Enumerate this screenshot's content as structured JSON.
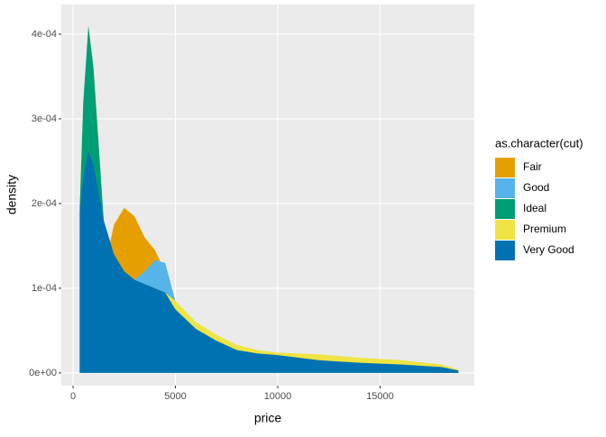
{
  "chart_data": {
    "type": "area",
    "x_label": "price",
    "y_label": "density",
    "legend_title": "as.character(cut)",
    "legend": "right",
    "grid": true,
    "x": [
      326,
      500,
      750,
      1000,
      1500,
      2000,
      2500,
      3000,
      3500,
      4000,
      4500,
      5000,
      6000,
      7000,
      8000,
      9000,
      10000,
      12000,
      14000,
      16000,
      18000,
      18823
    ],
    "series": [
      {
        "name": "Fair",
        "color": "#E69F00",
        "values": [
          3e-05,
          4.5e-05,
          6e-05,
          8e-05,
          0.00012,
          0.000175,
          0.000195,
          0.000185,
          0.00016,
          0.000145,
          0.00012,
          8e-05,
          5.5e-05,
          4e-05,
          3e-05,
          2.5e-05,
          2e-05,
          1.5e-05,
          1.2e-05,
          1e-05,
          7e-06,
          3e-06
        ]
      },
      {
        "name": "Good",
        "color": "#56B4E9",
        "values": [
          0.00016,
          0.0002,
          0.00023,
          0.00022,
          0.000165,
          0.00013,
          0.000115,
          0.00011,
          0.00012,
          0.000133,
          0.00013,
          8.5e-05,
          5e-05,
          3.8e-05,
          2.8e-05,
          2.3e-05,
          2e-05,
          1.5e-05,
          1.2e-05,
          1e-05,
          7e-06,
          3e-06
        ]
      },
      {
        "name": "Ideal",
        "color": "#009E73",
        "values": [
          0.000195,
          0.00032,
          0.00041,
          0.00036,
          0.00018,
          0.00011,
          8.5e-05,
          7.5e-05,
          7e-05,
          7e-05,
          6e-05,
          4.5e-05,
          3e-05,
          2.7e-05,
          2.2e-05,
          1.8e-05,
          1.5e-05,
          1.2e-05,
          1e-05,
          8e-06,
          6e-06,
          3e-06
        ]
      },
      {
        "name": "Premium",
        "color": "#F0E442",
        "values": [
          0.00015,
          0.00019,
          0.00022,
          0.00021,
          0.00016,
          0.00013,
          0.00011,
          0.000105,
          0.000105,
          0.0001,
          9.5e-05,
          8.5e-05,
          6e-05,
          4.5e-05,
          3.3e-05,
          2.7e-05,
          2.4e-05,
          2.2e-05,
          1.8e-05,
          1.5e-05,
          1e-05,
          4e-06
        ]
      },
      {
        "name": "Very Good",
        "color": "#0072B2",
        "values": [
          0.00019,
          0.00023,
          0.000262,
          0.000245,
          0.00018,
          0.00014,
          0.00012,
          0.00011,
          0.000105,
          0.0001,
          9.5e-05,
          7.5e-05,
          5.2e-05,
          3.8e-05,
          2.7e-05,
          2.3e-05,
          2.1e-05,
          1.5e-05,
          1.2e-05,
          1e-05,
          7e-06,
          3e-06
        ]
      }
    ],
    "xlim": [
      -573,
      19604
    ],
    "xticks": [
      0,
      5000,
      10000,
      15000
    ],
    "ylim": [
      -1.5e-05,
      0.000435
    ],
    "yticks": [
      {
        "value": 0,
        "label": "0e+00"
      },
      {
        "value": 0.0001,
        "label": "1e-04"
      },
      {
        "value": 0.0002,
        "label": "2e-04"
      },
      {
        "value": 0.0003,
        "label": "3e-04"
      },
      {
        "value": 0.0004,
        "label": "4e-04"
      }
    ]
  }
}
